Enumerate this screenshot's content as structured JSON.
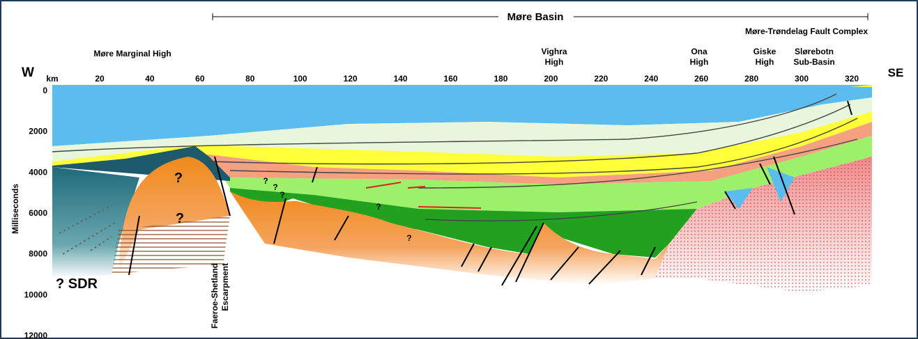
{
  "header": {
    "title": "Møre Basin",
    "subtitle": "Møre-Trøndelag Fault Complex"
  },
  "regions": [
    {
      "lines": [
        "Møre Marginal High"
      ]
    },
    {
      "lines": [
        "Vighra",
        "High"
      ]
    },
    {
      "lines": [
        "Ona",
        "High"
      ]
    },
    {
      "lines": [
        "Giske",
        "High"
      ]
    },
    {
      "lines": [
        "Slørebotn",
        "Sub-Basin"
      ]
    }
  ],
  "directions": {
    "west": "W",
    "east": "SE"
  },
  "x_axis": {
    "unit": "km",
    "ticks": [
      20,
      40,
      60,
      80,
      100,
      120,
      140,
      160,
      180,
      200,
      220,
      240,
      260,
      280,
      300,
      320
    ]
  },
  "y_axis": {
    "label": "Milliseconds",
    "ticks": [
      0,
      2000,
      4000,
      6000,
      8000,
      10000,
      12000
    ]
  },
  "annotations": {
    "sdr": "? SDR",
    "escarpment": [
      "Faeroe-Shetland",
      "Escarpment"
    ],
    "unknowns": [
      "?",
      "?",
      "?",
      "?",
      "?",
      "?",
      "?"
    ]
  }
}
